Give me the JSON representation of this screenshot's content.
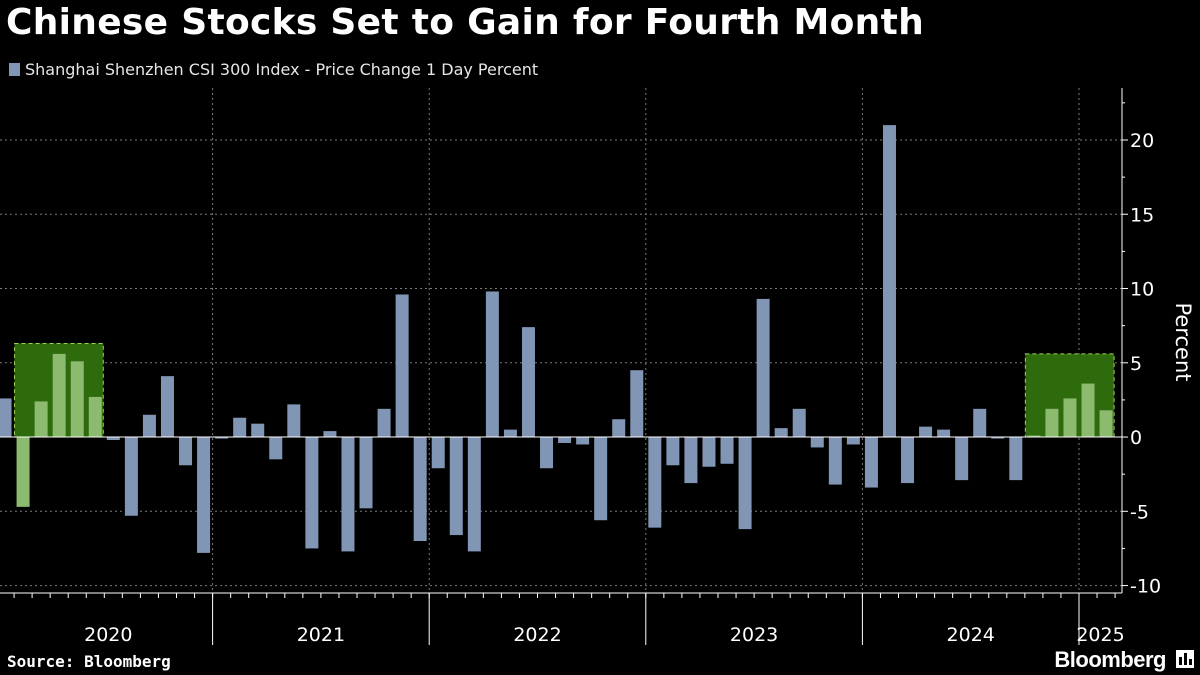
{
  "title": "Chinese Stocks Set to Gain for Fourth Month",
  "legend": {
    "label": "Shanghai Shenzhen CSI 300 Index - Price Change 1 Day Percent",
    "color": "#8195b5"
  },
  "source": "Source: Bloomberg",
  "brand": "Bloomberg",
  "colors": {
    "bar": "#8195b5",
    "highlight_fill": "#2e6b0c",
    "highlight_border": "#9bd35a",
    "highlight_bar": "#8cba6e",
    "grid": "#7a7a7a"
  },
  "chart_data": {
    "type": "bar",
    "title": "Chinese Stocks Set to Gain for Fourth Month",
    "ylabel": "Percent",
    "xlabel": "",
    "ylim": [
      -10.5,
      23.5
    ],
    "yticks": [
      -10,
      -5,
      0,
      5,
      10,
      15,
      20
    ],
    "series": [
      {
        "name": "Shanghai Shenzhen CSI 300 Index - Price Change 1 Day Percent",
        "values": [
          2.6,
          -4.7,
          2.4,
          5.6,
          5.1,
          2.7,
          -0.2,
          -5.3,
          1.5,
          4.1,
          -1.9,
          -7.8,
          -0.1,
          1.3,
          0.9,
          -1.5,
          2.2,
          -7.5,
          0.4,
          -7.7,
          -4.8,
          1.9,
          9.6,
          -7.0,
          -2.1,
          -6.6,
          -7.7,
          9.8,
          0.5,
          7.4,
          -2.1,
          -0.4,
          -0.5,
          -5.6,
          1.2,
          4.5,
          -6.1,
          -1.9,
          -3.1,
          -2.0,
          -1.8,
          -6.2,
          9.3,
          0.6,
          1.9,
          -0.7,
          -3.2,
          -0.5,
          -3.4,
          21.0,
          -3.1,
          0.7,
          0.5,
          -2.9,
          1.9,
          -0.1,
          -2.9,
          0.1,
          1.9,
          2.6,
          3.6,
          1.8
        ]
      }
    ],
    "start": "2020-01",
    "year_labels": [
      "2020",
      "2021",
      "2022",
      "2023",
      "2024",
      "2025"
    ],
    "highlights": [
      {
        "from_index": 1,
        "to_index": 5,
        "top": 6.3
      },
      {
        "from_index": 57,
        "to_index": 61,
        "top": 5.6
      }
    ]
  }
}
